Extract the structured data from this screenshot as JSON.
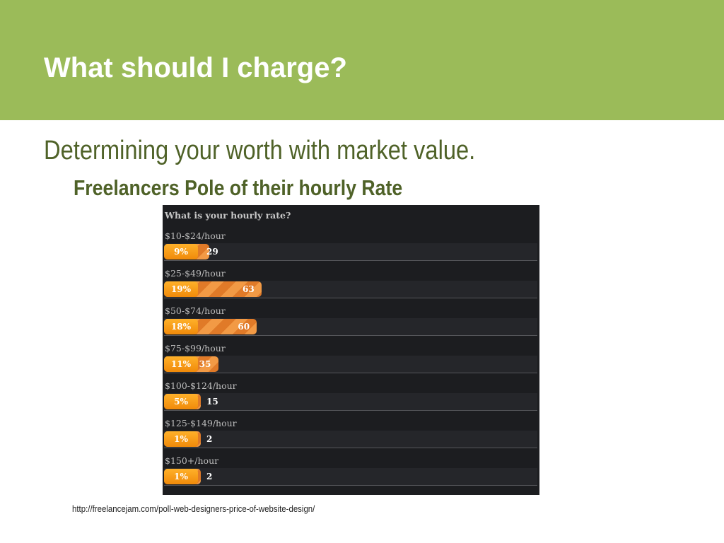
{
  "slide": {
    "title": "What should I charge?",
    "subtitle": "Determining your worth with market value.",
    "sub_subtitle": "Freelancers Pole of their hourly Rate",
    "source_link": "http://freelancejam.com/poll-web-designers-price-of-website-design/"
  },
  "colors": {
    "header_bg": "#9bbb59",
    "subtitle_text": "#4f6228",
    "poll_bg": "#1c1d20",
    "bar_orange": "#f5a020",
    "bar_stripe": "#e07a28"
  },
  "chart_data": {
    "type": "bar",
    "orientation": "horizontal",
    "title": "What is your hourly rate?",
    "categories": [
      "$10-$24/hour",
      "$25-$49/hour",
      "$50-$74/hour",
      "$75-$99/hour",
      "$100-$124/hour",
      "$125-$149/hour",
      "$150+/hour"
    ],
    "series": [
      {
        "values": [
          29,
          63,
          60,
          35,
          15,
          2,
          2
        ]
      }
    ],
    "percent_labels": [
      "9%",
      "19%",
      "18%",
      "11%",
      "5%",
      "1%",
      "1%"
    ],
    "grid": false,
    "legend": "none"
  }
}
